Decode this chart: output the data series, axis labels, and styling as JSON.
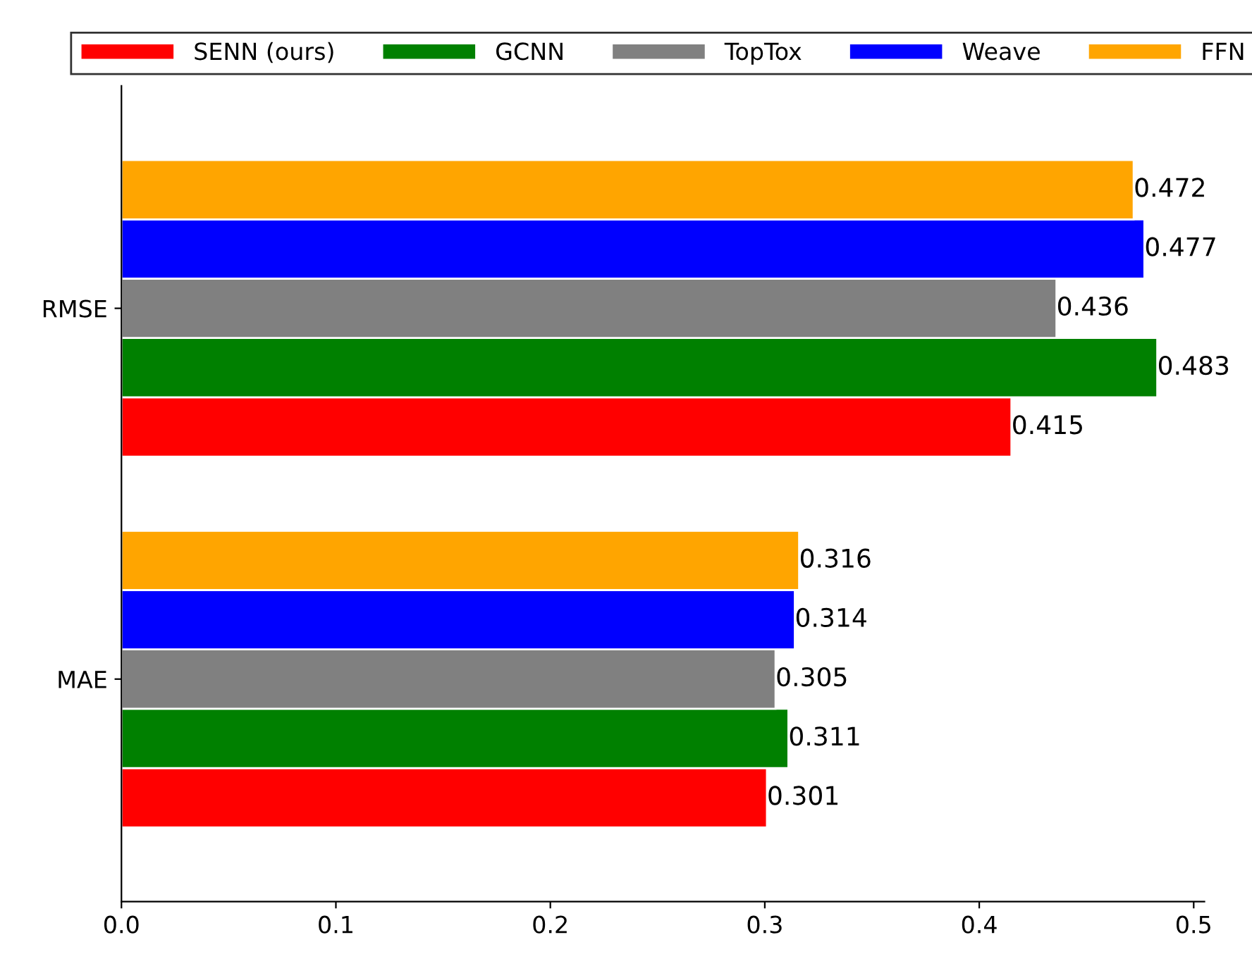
{
  "chart_data": {
    "type": "bar",
    "orientation": "horizontal",
    "categories": [
      "RMSE",
      "MAE"
    ],
    "series": [
      {
        "name": "SENN (ours)",
        "color": "#ff0000",
        "values": [
          0.415,
          0.301
        ]
      },
      {
        "name": "GCNN",
        "color": "#008000",
        "values": [
          0.483,
          0.311
        ]
      },
      {
        "name": "TopTox",
        "color": "#808080",
        "values": [
          0.436,
          0.305
        ]
      },
      {
        "name": "Weave",
        "color": "#0000ff",
        "values": [
          0.477,
          0.314
        ]
      },
      {
        "name": "FFN",
        "color": "#ffa500",
        "values": [
          0.472,
          0.316
        ]
      }
    ],
    "xlim": [
      0,
      0.505
    ],
    "xticks": [
      {
        "value": 0,
        "label": "0.0"
      },
      0.1,
      0.2,
      0.3,
      0.4,
      0.5
    ],
    "data_labels": true,
    "legend": "top",
    "grid": false
  }
}
